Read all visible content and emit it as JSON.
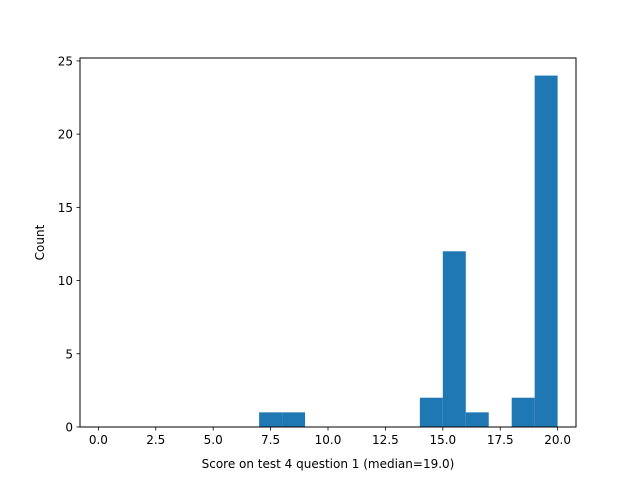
{
  "chart_data": {
    "type": "bar",
    "title": "",
    "xlabel": "Score on test 4 question 1 (median=19.0)",
    "ylabel": "Count",
    "xlim": [
      -0.8,
      20.8
    ],
    "ylim": [
      0,
      25.2
    ],
    "x_ticks": [
      0.0,
      2.5,
      5.0,
      7.5,
      10.0,
      12.5,
      15.0,
      17.5,
      20.0
    ],
    "x_tick_labels": [
      "0.0",
      "2.5",
      "5.0",
      "7.5",
      "10.0",
      "12.5",
      "15.0",
      "17.5",
      "20.0"
    ],
    "y_ticks": [
      0,
      5,
      10,
      15,
      20,
      25
    ],
    "y_tick_labels": [
      "0",
      "5",
      "10",
      "15",
      "20",
      "25"
    ],
    "bin_width": 1,
    "bins": [
      {
        "start": 7,
        "end": 8,
        "count": 1
      },
      {
        "start": 8,
        "end": 9,
        "count": 1
      },
      {
        "start": 14,
        "end": 15,
        "count": 2
      },
      {
        "start": 15,
        "end": 16,
        "count": 12
      },
      {
        "start": 16,
        "end": 17,
        "count": 1
      },
      {
        "start": 18,
        "end": 19,
        "count": 2
      },
      {
        "start": 19,
        "end": 20,
        "count": 24
      }
    ],
    "bar_color": "#1f77b4",
    "grid": false,
    "legend": "none"
  }
}
